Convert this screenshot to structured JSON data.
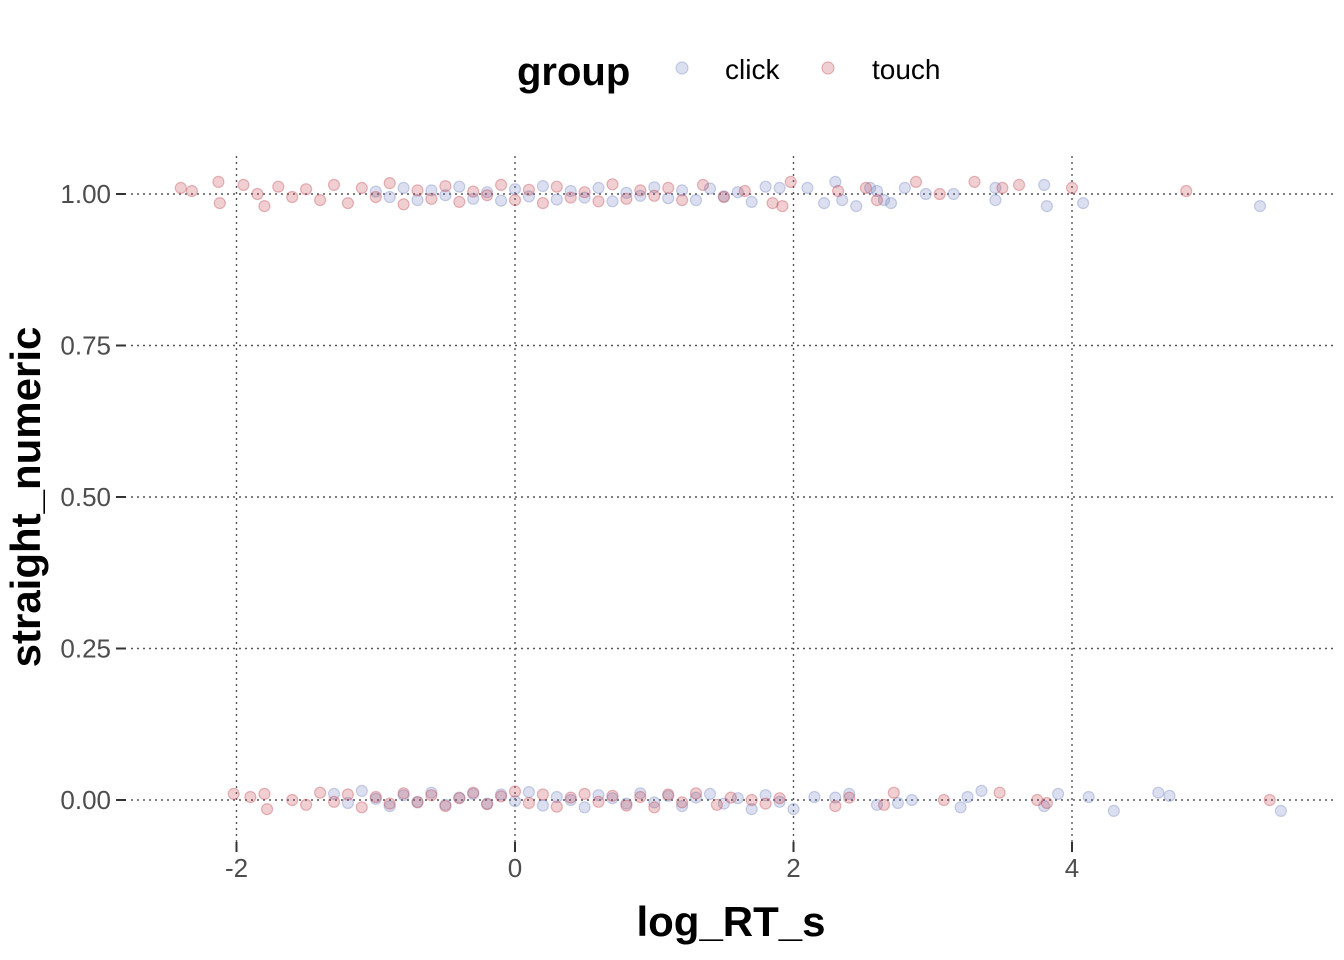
{
  "chart_data": {
    "type": "scatter",
    "xlabel": "log_RT_s",
    "ylabel": "straight_numeric",
    "xlim": [
      -2.5,
      5.8
    ],
    "ylim": [
      -0.07,
      1.07
    ],
    "x_ticks": [
      -2,
      0,
      2,
      4
    ],
    "x_tick_labels": [
      "-2",
      "0",
      "2",
      "4"
    ],
    "y_ticks": [
      0,
      0.25,
      0.5,
      0.75,
      1
    ],
    "y_tick_labels": [
      "0.00",
      "0.25",
      "0.50",
      "0.75",
      "1.00"
    ],
    "grid": "dotted",
    "point_opacity": 0.25,
    "legend": {
      "title": "group",
      "position": "top",
      "entries": [
        {
          "label": "click",
          "color": "#7080bf"
        },
        {
          "label": "touch",
          "color": "#c0404a"
        }
      ]
    },
    "series": [
      {
        "name": "click",
        "color": "#7080bf",
        "points": [
          [
            -1.0,
            1.004
          ],
          [
            -0.9,
            0.995
          ],
          [
            -0.8,
            1.01
          ],
          [
            -0.7,
            0.99
          ],
          [
            -0.6,
            1.006
          ],
          [
            -0.5,
            0.998
          ],
          [
            -0.4,
            1.012
          ],
          [
            -0.3,
            0.992
          ],
          [
            -0.2,
            1.003
          ],
          [
            -0.1,
            0.989
          ],
          [
            0.0,
            1.008
          ],
          [
            0.1,
            0.996
          ],
          [
            0.2,
            1.013
          ],
          [
            0.3,
            0.991
          ],
          [
            0.4,
            1.005
          ],
          [
            0.5,
            0.994
          ],
          [
            0.6,
            1.01
          ],
          [
            0.7,
            0.988
          ],
          [
            0.8,
            1.002
          ],
          [
            0.9,
            0.997
          ],
          [
            1.0,
            1.011
          ],
          [
            1.1,
            0.993
          ],
          [
            1.2,
            1.006
          ],
          [
            1.3,
            0.99
          ],
          [
            1.4,
            1.009
          ],
          [
            1.5,
            0.996
          ],
          [
            1.6,
            1.003
          ],
          [
            1.7,
            0.987
          ],
          [
            1.8,
            1.012
          ],
          [
            1.9,
            1.01
          ],
          [
            2.1,
            1.01
          ],
          [
            2.22,
            0.985
          ],
          [
            2.3,
            1.02
          ],
          [
            2.35,
            0.99
          ],
          [
            2.45,
            0.98
          ],
          [
            2.55,
            1.01
          ],
          [
            2.6,
            1.005
          ],
          [
            2.65,
            0.99
          ],
          [
            2.7,
            0.985
          ],
          [
            2.8,
            1.01
          ],
          [
            2.95,
            1.0
          ],
          [
            3.15,
            1.0
          ],
          [
            3.45,
            1.01
          ],
          [
            3.45,
            0.99
          ],
          [
            3.8,
            1.015
          ],
          [
            3.82,
            0.98
          ],
          [
            4.08,
            0.985
          ],
          [
            5.35,
            0.98
          ],
          [
            -1.3,
            0.01
          ],
          [
            -1.2,
            -0.005
          ],
          [
            -1.1,
            0.015
          ],
          [
            -1.0,
            0.002
          ],
          [
            -0.9,
            -0.01
          ],
          [
            -0.8,
            0.008
          ],
          [
            -0.7,
            -0.003
          ],
          [
            -0.6,
            0.012
          ],
          [
            -0.5,
            -0.008
          ],
          [
            -0.4,
            0.004
          ],
          [
            -0.3,
            0.01
          ],
          [
            -0.2,
            -0.006
          ],
          [
            -0.1,
            0.009
          ],
          [
            0.0,
            -0.002
          ],
          [
            0.1,
            0.013
          ],
          [
            0.2,
            -0.009
          ],
          [
            0.3,
            0.005
          ],
          [
            0.4,
            0.0
          ],
          [
            0.5,
            -0.012
          ],
          [
            0.6,
            0.008
          ],
          [
            0.7,
            0.003
          ],
          [
            0.8,
            -0.006
          ],
          [
            0.9,
            0.011
          ],
          [
            1.0,
            -0.004
          ],
          [
            1.1,
            0.007
          ],
          [
            1.2,
            -0.01
          ],
          [
            1.3,
            0.004
          ],
          [
            1.4,
            0.01
          ],
          [
            1.5,
            -0.006
          ],
          [
            1.6,
            0.003
          ],
          [
            1.7,
            -0.015
          ],
          [
            1.8,
            0.008
          ],
          [
            1.9,
            -0.003
          ],
          [
            2.0,
            -0.015
          ],
          [
            2.15,
            0.005
          ],
          [
            2.3,
            0.004
          ],
          [
            2.4,
            0.01
          ],
          [
            2.6,
            -0.008
          ],
          [
            2.75,
            -0.005
          ],
          [
            2.85,
            0.0
          ],
          [
            3.2,
            -0.012
          ],
          [
            3.25,
            0.005
          ],
          [
            3.35,
            0.015
          ],
          [
            3.8,
            -0.01
          ],
          [
            3.9,
            0.01
          ],
          [
            4.12,
            0.005
          ],
          [
            4.3,
            -0.018
          ],
          [
            4.62,
            0.012
          ],
          [
            4.7,
            0.007
          ],
          [
            5.5,
            -0.018
          ]
        ]
      },
      {
        "name": "touch",
        "color": "#c0404a",
        "points": [
          [
            -2.4,
            1.01
          ],
          [
            -2.32,
            1.005
          ],
          [
            -2.13,
            1.02
          ],
          [
            -2.12,
            0.985
          ],
          [
            -1.95,
            1.015
          ],
          [
            -1.85,
            1.0
          ],
          [
            -1.8,
            0.98
          ],
          [
            -1.7,
            1.012
          ],
          [
            -1.6,
            0.995
          ],
          [
            -1.5,
            1.008
          ],
          [
            -1.4,
            0.99
          ],
          [
            -1.3,
            1.015
          ],
          [
            -1.2,
            0.985
          ],
          [
            -1.1,
            1.01
          ],
          [
            -1.0,
            0.995
          ],
          [
            -0.9,
            1.018
          ],
          [
            -0.8,
            0.983
          ],
          [
            -0.7,
            1.006
          ],
          [
            -0.6,
            0.992
          ],
          [
            -0.5,
            1.013
          ],
          [
            -0.4,
            0.987
          ],
          [
            -0.3,
            1.004
          ],
          [
            -0.2,
            0.998
          ],
          [
            -0.1,
            1.015
          ],
          [
            0.0,
            0.99
          ],
          [
            0.1,
            1.007
          ],
          [
            0.2,
            0.985
          ],
          [
            0.3,
            1.012
          ],
          [
            0.4,
            0.994
          ],
          [
            0.5,
            1.003
          ],
          [
            0.6,
            0.988
          ],
          [
            0.7,
            1.016
          ],
          [
            0.8,
            0.992
          ],
          [
            0.9,
            1.006
          ],
          [
            1.0,
            0.997
          ],
          [
            1.1,
            1.01
          ],
          [
            1.2,
            0.99
          ],
          [
            1.35,
            1.015
          ],
          [
            1.5,
            0.995
          ],
          [
            1.65,
            1.005
          ],
          [
            1.85,
            0.985
          ],
          [
            1.92,
            0.98
          ],
          [
            1.98,
            1.02
          ],
          [
            2.32,
            1.005
          ],
          [
            2.52,
            1.01
          ],
          [
            2.6,
            0.99
          ],
          [
            2.88,
            1.02
          ],
          [
            3.05,
            1.0
          ],
          [
            3.3,
            1.02
          ],
          [
            3.5,
            1.01
          ],
          [
            3.62,
            1.015
          ],
          [
            4.0,
            1.01
          ],
          [
            4.82,
            1.005
          ],
          [
            -2.02,
            0.01
          ],
          [
            -1.9,
            0.005
          ],
          [
            -1.8,
            0.01
          ],
          [
            -1.78,
            -0.015
          ],
          [
            -1.6,
            0.0
          ],
          [
            -1.5,
            -0.008
          ],
          [
            -1.4,
            0.012
          ],
          [
            -1.3,
            -0.003
          ],
          [
            -1.2,
            0.009
          ],
          [
            -1.1,
            -0.012
          ],
          [
            -1.0,
            0.005
          ],
          [
            -0.9,
            -0.006
          ],
          [
            -0.8,
            0.011
          ],
          [
            -0.7,
            -0.004
          ],
          [
            -0.6,
            0.008
          ],
          [
            -0.5,
            -0.01
          ],
          [
            -0.4,
            0.003
          ],
          [
            -0.3,
            0.012
          ],
          [
            -0.2,
            -0.007
          ],
          [
            -0.1,
            0.006
          ],
          [
            0.0,
            0.014
          ],
          [
            0.1,
            -0.005
          ],
          [
            0.2,
            0.009
          ],
          [
            0.3,
            -0.011
          ],
          [
            0.4,
            0.004
          ],
          [
            0.5,
            0.01
          ],
          [
            0.6,
            -0.003
          ],
          [
            0.7,
            0.007
          ],
          [
            0.8,
            -0.009
          ],
          [
            0.9,
            0.005
          ],
          [
            1.0,
            -0.012
          ],
          [
            1.1,
            0.009
          ],
          [
            1.2,
            -0.004
          ],
          [
            1.3,
            0.011
          ],
          [
            1.45,
            -0.008
          ],
          [
            1.55,
            0.004
          ],
          [
            1.7,
            0.0
          ],
          [
            1.8,
            -0.006
          ],
          [
            1.9,
            0.003
          ],
          [
            2.3,
            -0.01
          ],
          [
            2.4,
            0.004
          ],
          [
            2.65,
            -0.008
          ],
          [
            2.72,
            0.012
          ],
          [
            3.08,
            0.0
          ],
          [
            3.48,
            0.012
          ],
          [
            3.75,
            0.0
          ],
          [
            3.82,
            -0.005
          ],
          [
            5.42,
            0.0
          ]
        ]
      }
    ]
  }
}
